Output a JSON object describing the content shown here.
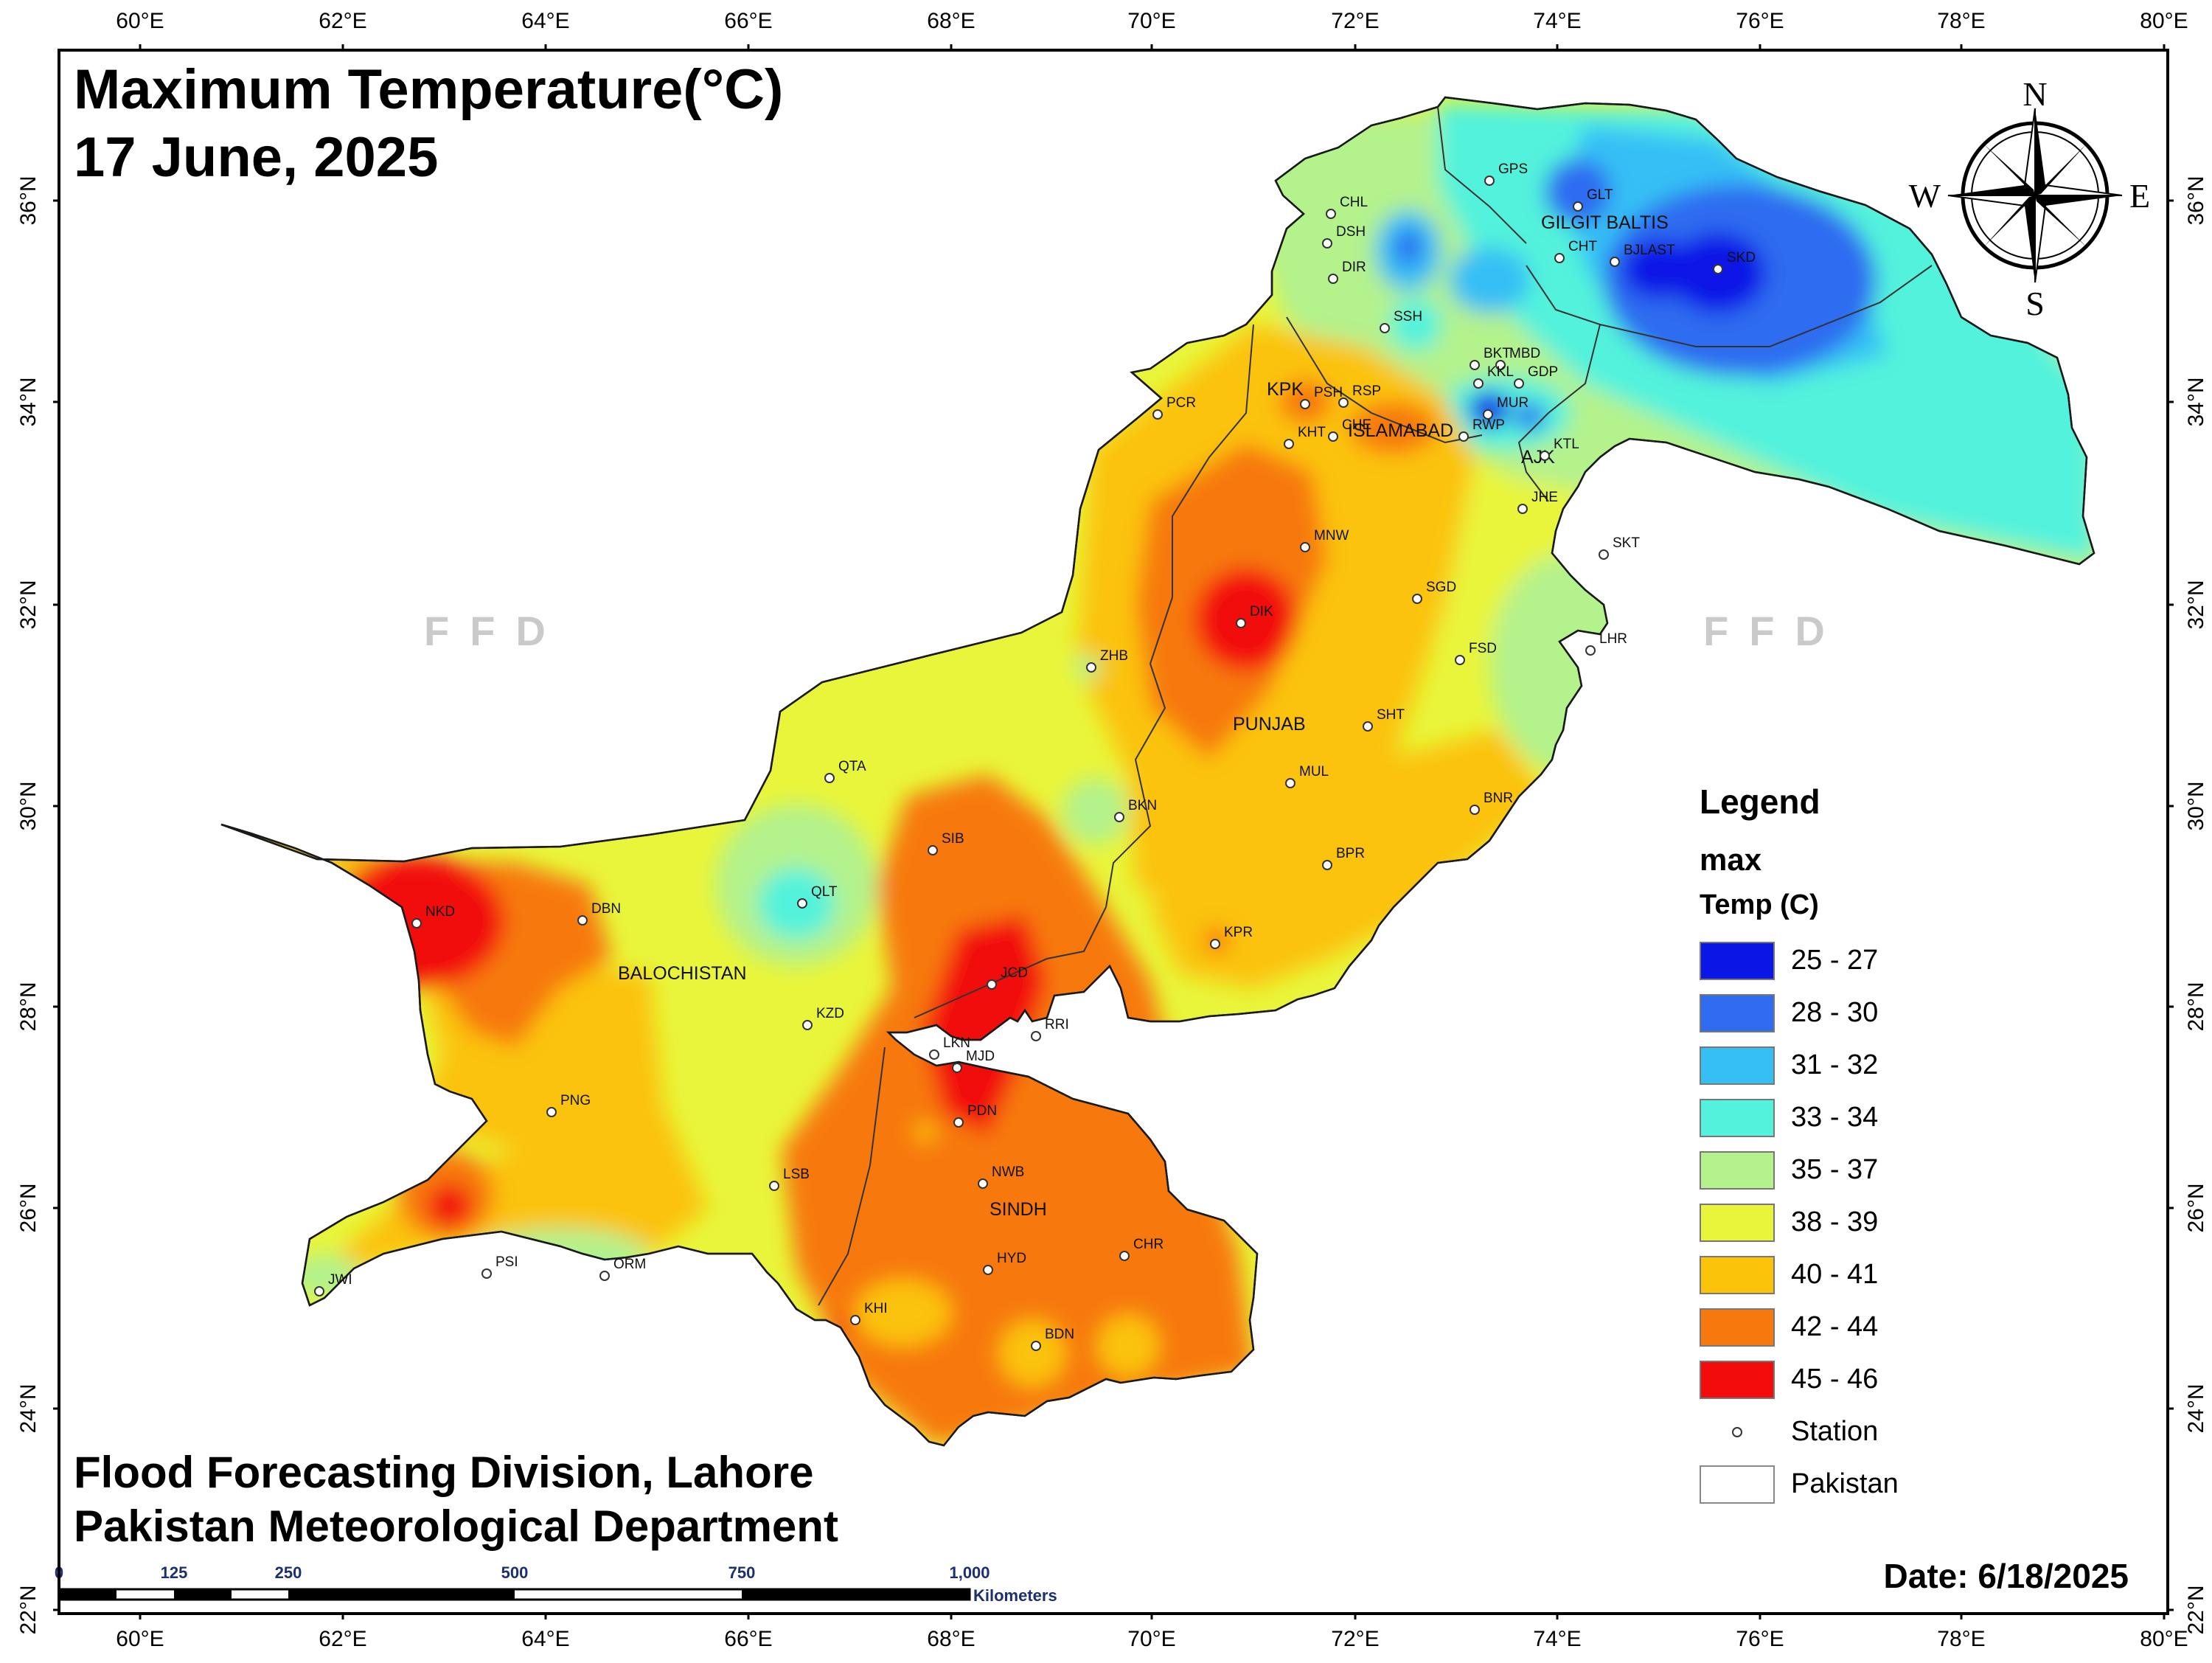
{
  "title": {
    "line1": "Maximum Temperature(°C)",
    "line2": "17 June, 2025"
  },
  "credits": {
    "line1": "Flood Forecasting Division, Lahore",
    "line2": "Pakistan Meteorological Department"
  },
  "date_label": "Date: 6/18/2025",
  "watermark": "FFD",
  "compass": {
    "n": "N",
    "s": "S",
    "e": "E",
    "w": "W"
  },
  "graticule": {
    "lon_labels": [
      "60°E",
      "62°E",
      "64°E",
      "66°E",
      "68°E",
      "70°E",
      "72°E",
      "74°E",
      "76°E",
      "78°E",
      "80°E"
    ],
    "lat_labels": [
      "22°N",
      "24°N",
      "26°N",
      "28°N",
      "30°N",
      "32°N",
      "34°N",
      "36°N"
    ]
  },
  "scale_bar": {
    "ticks": [
      "0",
      "125",
      "250",
      "500",
      "750",
      "1,000"
    ],
    "unit": "Kilometers"
  },
  "legend": {
    "heading": "Legend",
    "field": "max",
    "unit_label": "Temp (C)",
    "classes": [
      {
        "label": "25 - 27",
        "color": "#0a16e6"
      },
      {
        "label": "28 - 30",
        "color": "#2f6cf0"
      },
      {
        "label": "31 - 32",
        "color": "#36bff5"
      },
      {
        "label": "33 - 34",
        "color": "#52f2dc"
      },
      {
        "label": "35 - 37",
        "color": "#b4f28c"
      },
      {
        "label": "38 - 39",
        "color": "#e9f53a"
      },
      {
        "label": "40 - 41",
        "color": "#fbc30a"
      },
      {
        "label": "42 - 44",
        "color": "#f7790e"
      },
      {
        "label": "45 - 46",
        "color": "#f20c0c"
      }
    ],
    "station_label": "Station",
    "boundary_label": "Pakistan"
  },
  "regions": [
    "GILGIT BALTIS",
    "KPK",
    "ISLAMABAD",
    "AJK",
    "PUNJAB",
    "BALOCHISTAN",
    "SINDH"
  ],
  "stations": [
    "GPS",
    "GLT",
    "CHL",
    "DSH",
    "DIR",
    "CHT",
    "BJLAST",
    "SKD",
    "SSH",
    "BKT",
    "MBD",
    "KKL",
    "GDP",
    "PSH",
    "RSP",
    "MUR",
    "CHE",
    "RWP",
    "KHT",
    "KTL",
    "PCR",
    "JHE",
    "MNW",
    "SKT",
    "SGD",
    "DIK",
    "LHR",
    "FSD",
    "ZHB",
    "SHT",
    "QTA",
    "MUL",
    "BKN",
    "BNR",
    "SIB",
    "BPR",
    "QLT",
    "NKD",
    "DBN",
    "KPR",
    "JCD",
    "KZD",
    "RRI",
    "LKN",
    "MJD",
    "PNG",
    "PDN",
    "LSB",
    "NWB",
    "CHR",
    "PSI",
    "JWI",
    "ORM",
    "HYD",
    "KHI",
    "BDN"
  ]
}
